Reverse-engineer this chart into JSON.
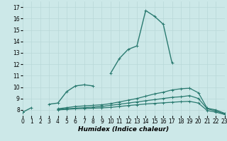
{
  "xlabel": "Humidex (Indice chaleur)",
  "x_values": [
    0,
    1,
    2,
    3,
    4,
    5,
    6,
    7,
    8,
    9,
    10,
    11,
    12,
    13,
    14,
    15,
    16,
    17,
    18,
    19,
    20,
    21,
    22,
    23
  ],
  "series": [
    {
      "y": [
        7.8,
        8.2,
        null,
        8.5,
        8.6,
        9.6,
        10.1,
        10.2,
        10.1,
        null,
        11.2,
        12.5,
        13.3,
        13.6,
        16.7,
        16.2,
        15.5,
        12.1,
        null,
        9.9,
        null,
        null,
        null,
        null
      ],
      "color": "#2a7a70",
      "linewidth": 1.0,
      "marker": "+"
    },
    {
      "y": [
        7.8,
        null,
        null,
        null,
        8.1,
        8.2,
        8.3,
        8.35,
        8.4,
        8.45,
        8.55,
        8.7,
        8.85,
        9.0,
        9.2,
        9.4,
        9.55,
        9.75,
        9.85,
        9.9,
        9.5,
        8.15,
        8.0,
        7.7
      ],
      "color": "#2a7a70",
      "linewidth": 0.9,
      "marker": "+"
    },
    {
      "y": [
        7.8,
        null,
        null,
        null,
        8.05,
        8.1,
        8.15,
        8.2,
        8.25,
        8.3,
        8.4,
        8.5,
        8.6,
        8.7,
        8.8,
        8.9,
        9.0,
        9.1,
        9.15,
        9.25,
        9.0,
        8.1,
        7.9,
        7.65
      ],
      "color": "#2a7a70",
      "linewidth": 0.9,
      "marker": "+"
    },
    {
      "y": [
        7.8,
        null,
        null,
        null,
        8.0,
        8.05,
        8.1,
        8.12,
        8.15,
        8.18,
        8.22,
        8.3,
        8.38,
        8.45,
        8.52,
        8.57,
        8.62,
        8.67,
        8.72,
        8.75,
        8.6,
        7.95,
        7.8,
        7.6
      ],
      "color": "#2a7a70",
      "linewidth": 0.9,
      "marker": "+"
    }
  ],
  "xlim": [
    0,
    23
  ],
  "ylim": [
    7.5,
    17.5
  ],
  "yticks": [
    8,
    9,
    10,
    11,
    12,
    13,
    14,
    15,
    16,
    17
  ],
  "xticks": [
    0,
    1,
    2,
    3,
    4,
    5,
    6,
    7,
    8,
    9,
    10,
    11,
    12,
    13,
    14,
    15,
    16,
    17,
    18,
    19,
    20,
    21,
    22,
    23
  ],
  "bg_color": "#cce8e8",
  "grid_color": "#b8d8d8",
  "marker_size": 2.5,
  "marker_ew": 0.7
}
